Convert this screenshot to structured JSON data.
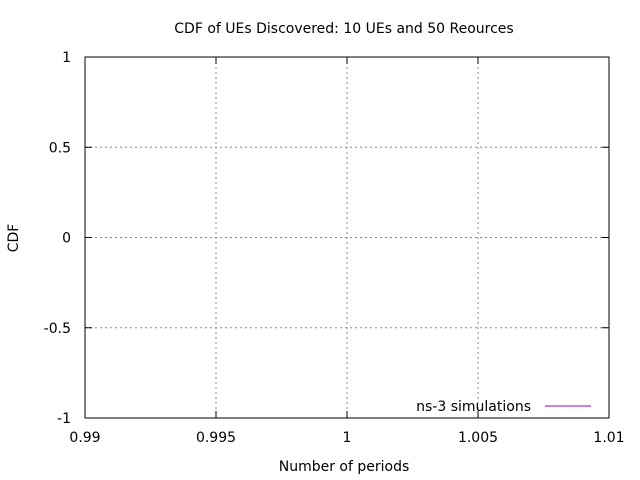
{
  "chart_data": {
    "type": "line",
    "title": "CDF of UEs Discovered: 10 UEs and 50 Reources",
    "xlabel": "Number of periods",
    "ylabel": "CDF",
    "xlim": [
      0.99,
      1.01
    ],
    "ylim": [
      -1,
      1
    ],
    "x_ticks": [
      0.99,
      0.995,
      1,
      1.005,
      1.01
    ],
    "x_tick_labels": [
      "0.99",
      "0.995",
      "1",
      "1.005",
      "1.01"
    ],
    "y_ticks": [
      -1,
      -0.5,
      0,
      0.5,
      1
    ],
    "y_tick_labels": [
      "-1",
      "-0.5",
      "0",
      "0.5",
      "1"
    ],
    "grid": true,
    "legend_position": "bottom-right",
    "series": [
      {
        "name": "ns-3 simulations",
        "color": "#9400d3",
        "x": [],
        "y": []
      }
    ]
  }
}
